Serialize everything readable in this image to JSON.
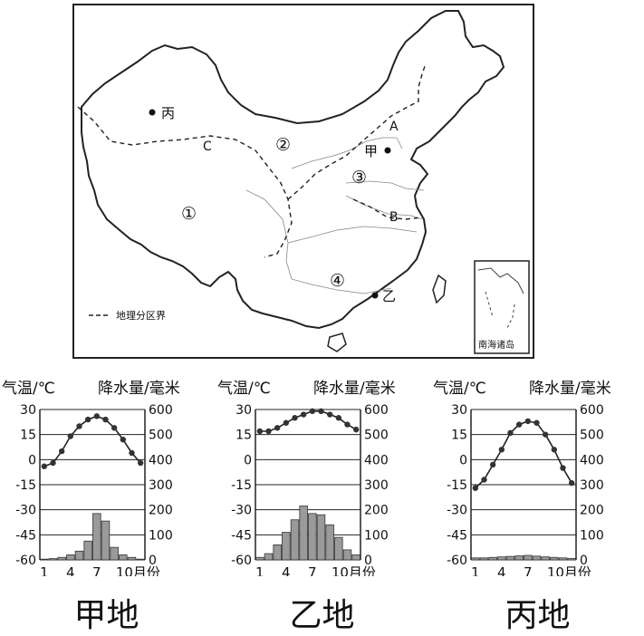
{
  "map": {
    "labels": {
      "bing": "丙",
      "jia": "甲",
      "yi": "乙",
      "A": "A",
      "B": "B",
      "C": "C",
      "r1": "①",
      "r2": "②",
      "r3": "③",
      "r4": "④"
    },
    "legend_label": "地理分区界",
    "inset_label": "南海诸岛"
  },
  "axis_titles": {
    "temp": "气温/℃",
    "precip": "降水量/毫米",
    "month_unit": "月份"
  },
  "chart_data": [
    {
      "type": "bar",
      "caption": "甲地",
      "x": [
        1,
        2,
        3,
        4,
        5,
        6,
        7,
        8,
        9,
        10,
        11,
        12
      ],
      "x_ticks": [
        1,
        4,
        7,
        10
      ],
      "temp_ticks": [
        30,
        15,
        0,
        -15,
        -30,
        -45,
        -60
      ],
      "precip_ticks": [
        600,
        500,
        400,
        300,
        200,
        100,
        0
      ],
      "temp_ylim": [
        -60,
        30
      ],
      "precip_ylim": [
        0,
        600
      ],
      "series": [
        {
          "kind": "line",
          "axis": "temp",
          "values": [
            -4,
            -2,
            5,
            14,
            20,
            24,
            26,
            24,
            19,
            12,
            4,
            -2
          ]
        },
        {
          "kind": "bar",
          "axis": "precip",
          "values": [
            3,
            5,
            10,
            20,
            35,
            75,
            185,
            155,
            50,
            20,
            10,
            3
          ]
        }
      ]
    },
    {
      "type": "bar",
      "caption": "乙地",
      "x": [
        1,
        2,
        3,
        4,
        5,
        6,
        7,
        8,
        9,
        10,
        11,
        12
      ],
      "x_ticks": [
        1,
        4,
        7,
        10
      ],
      "temp_ticks": [
        30,
        15,
        0,
        -15,
        -30,
        -45,
        -60
      ],
      "precip_ticks": [
        600,
        500,
        400,
        300,
        200,
        100,
        0
      ],
      "temp_ylim": [
        -60,
        30
      ],
      "precip_ylim": [
        0,
        600
      ],
      "series": [
        {
          "kind": "line",
          "axis": "temp",
          "values": [
            17,
            17,
            19,
            22,
            25,
            27,
            29,
            29,
            27,
            25,
            21,
            18
          ]
        },
        {
          "kind": "bar",
          "axis": "precip",
          "values": [
            10,
            25,
            60,
            110,
            160,
            215,
            185,
            180,
            140,
            90,
            40,
            20
          ]
        }
      ]
    },
    {
      "type": "bar",
      "caption": "丙地",
      "x": [
        1,
        2,
        3,
        4,
        5,
        6,
        7,
        8,
        9,
        10,
        11,
        12
      ],
      "x_ticks": [
        1,
        4,
        7,
        10
      ],
      "temp_ticks": [
        30,
        15,
        0,
        -15,
        -30,
        -45,
        -60
      ],
      "precip_ticks": [
        600,
        500,
        400,
        300,
        200,
        100,
        0
      ],
      "temp_ylim": [
        -60,
        30
      ],
      "precip_ylim": [
        0,
        600
      ],
      "series": [
        {
          "kind": "line",
          "axis": "temp",
          "values": [
            -17,
            -12,
            -3,
            6,
            16,
            21,
            23,
            22,
            15,
            6,
            -5,
            -14
          ]
        },
        {
          "kind": "bar",
          "axis": "precip",
          "values": [
            8,
            8,
            10,
            12,
            14,
            16,
            18,
            15,
            12,
            10,
            8,
            6
          ]
        }
      ]
    }
  ]
}
